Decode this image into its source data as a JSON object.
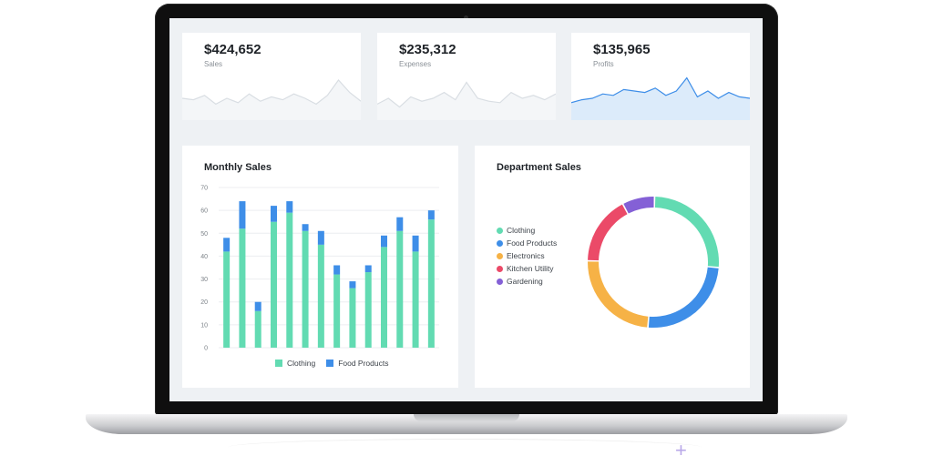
{
  "stats": [
    {
      "value": "$424,652",
      "label": "Sales"
    },
    {
      "value": "$235,312",
      "label": "Expenses"
    },
    {
      "value": "$135,965",
      "label": "Profits"
    }
  ],
  "monthly": {
    "title": "Monthly Sales",
    "legend": [
      "Clothing",
      "Food Products"
    ],
    "colors": {
      "clothing": "#62dbb2",
      "food": "#3e8ee8"
    }
  },
  "department": {
    "title": "Department Sales",
    "legend": [
      "Clothing",
      "Food Products",
      "Electronics",
      "Kitchen Utility",
      "Gardening"
    ],
    "colors": [
      "#62dbb2",
      "#3e8ee8",
      "#f6b246",
      "#eb4a68",
      "#8460d6"
    ]
  },
  "chart_data": [
    {
      "type": "line",
      "series": [
        {
          "values": [
            30,
            28,
            34,
            22,
            30,
            24,
            36,
            26,
            32,
            28,
            36,
            30,
            22,
            34,
            55,
            38,
            26
          ]
        }
      ],
      "ylim": [
        0,
        70
      ],
      "grid": false
    },
    {
      "type": "line",
      "series": [
        {
          "values": [
            22,
            30,
            18,
            32,
            26,
            30,
            38,
            28,
            52,
            30,
            26,
            24,
            38,
            30,
            34,
            28,
            36
          ]
        }
      ],
      "ylim": [
        0,
        70
      ],
      "grid": false
    },
    {
      "type": "area",
      "series": [
        {
          "values": [
            24,
            28,
            30,
            36,
            34,
            42,
            40,
            38,
            44,
            34,
            40,
            58,
            32,
            40,
            30,
            38,
            32,
            30
          ]
        }
      ],
      "ylim": [
        0,
        70
      ],
      "grid": false
    },
    {
      "type": "bar",
      "title": "Monthly Sales",
      "categories": [
        "",
        "",
        "",
        "",
        "",
        "",
        "",
        "",
        "",
        "",
        "",
        "",
        "",
        ""
      ],
      "series": [
        {
          "name": "Clothing",
          "values": [
            42,
            52,
            16,
            55,
            59,
            51,
            45,
            32,
            26,
            33,
            44,
            51,
            42,
            56
          ]
        },
        {
          "name": "Food Products",
          "values": [
            6,
            12,
            4,
            7,
            5,
            3,
            6,
            4,
            3,
            3,
            5,
            6,
            7,
            4
          ]
        }
      ],
      "yticks": [
        "0",
        "10",
        "20",
        "30",
        "40",
        "50",
        "60",
        "70"
      ],
      "ylim": [
        0,
        70
      ],
      "grid": true,
      "legend": "bottom"
    },
    {
      "type": "pie",
      "title": "Department Sales",
      "categories": [
        "Clothing",
        "Food Products",
        "Electronics",
        "Kitchen Utility",
        "Gardening"
      ],
      "values": [
        26,
        25,
        24,
        17,
        8
      ],
      "legend": "left"
    }
  ]
}
